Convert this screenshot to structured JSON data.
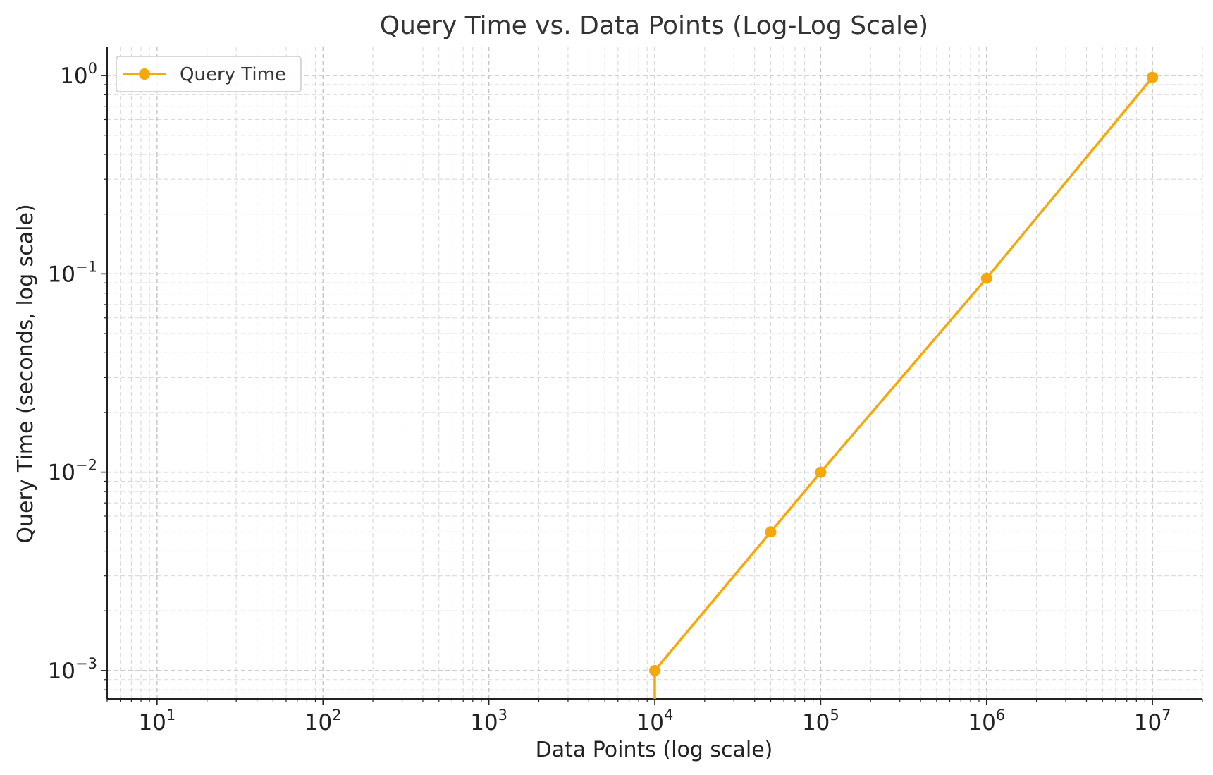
{
  "chart_data": {
    "type": "line",
    "title": "Query Time vs. Data Points (Log-Log Scale)",
    "xlabel": "Data Points (log scale)",
    "ylabel": "Query Time (seconds, log scale)",
    "x_scale": "log",
    "y_scale": "log",
    "xlim": [
      5,
      20000000
    ],
    "ylim": [
      0.00072,
      1.4
    ],
    "x_ticks": [
      {
        "value": 10,
        "base": "10",
        "exp": "1"
      },
      {
        "value": 100,
        "base": "10",
        "exp": "2"
      },
      {
        "value": 1000,
        "base": "10",
        "exp": "3"
      },
      {
        "value": 10000,
        "base": "10",
        "exp": "4"
      },
      {
        "value": 100000,
        "base": "10",
        "exp": "5"
      },
      {
        "value": 1000000,
        "base": "10",
        "exp": "6"
      },
      {
        "value": 10000000,
        "base": "10",
        "exp": "7"
      }
    ],
    "y_ticks": [
      {
        "value": 0.001,
        "base": "10",
        "exp": "−3"
      },
      {
        "value": 0.01,
        "base": "10",
        "exp": "−2"
      },
      {
        "value": 0.1,
        "base": "10",
        "exp": "−1"
      },
      {
        "value": 1,
        "base": "10",
        "exp": "0"
      }
    ],
    "grid": true,
    "legend_position": "top-left",
    "series": [
      {
        "name": "Query Time",
        "color": "#F5A80D",
        "marker": "circle",
        "x": [
          10000,
          50000,
          100000,
          1000000,
          10000000
        ],
        "y": [
          0.001,
          0.005,
          0.01,
          0.095,
          0.98
        ],
        "extends_below_axis_at_start": true
      }
    ]
  }
}
